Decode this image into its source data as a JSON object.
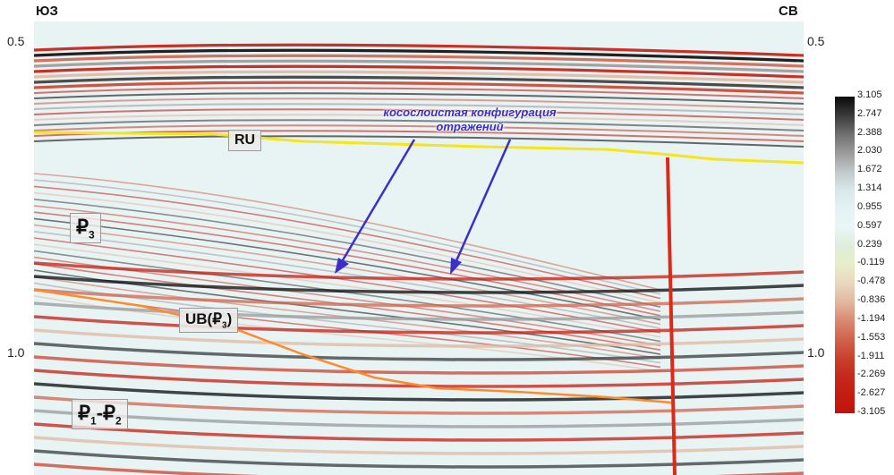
{
  "directions": {
    "left": "ЮЗ",
    "right": "СВ"
  },
  "time_axis": {
    "ticks": [
      "0.5",
      "1.0"
    ]
  },
  "horizons": {
    "ru": "RU",
    "p3": {
      "symbol": "₽",
      "sub": "3"
    },
    "ub": {
      "text": "UB(",
      "symbol": "₽",
      "sub": "3",
      "close": ")"
    },
    "p12": {
      "symbol": "₽",
      "sub1": "1",
      "dash": "-",
      "symbol2": "₽",
      "sub2": "2"
    }
  },
  "annotation": {
    "line1": "косослоистая конфигурация",
    "line2": "отражений"
  },
  "colorbar": {
    "ticks": [
      "3.105",
      "2.747",
      "2.388",
      "2.030",
      "1.672",
      "1.314",
      "0.955",
      "0.597",
      "0.239",
      "-0.119",
      "-0.478",
      "-0.836",
      "-1.194",
      "-1.553",
      "-1.911",
      "-2.269",
      "-2.627",
      "-3.105"
    ],
    "colors": [
      "#0a0a0a",
      "#3a3a3a",
      "#6e6e6e",
      "#9a9a9a",
      "#bfc7c9",
      "#d8e8ea",
      "#e3f2f4",
      "#e9f6f7",
      "#dfeedc",
      "#e7efc8",
      "#e8d7bf",
      "#e2b8a0",
      "#d98b72",
      "#d0644e",
      "#c9422f",
      "#c52a1c",
      "#c41c12",
      "#c0140c"
    ]
  },
  "colors": {
    "horizon_ru": "#f5e51a",
    "horizon_ub": "#ff8a2a",
    "arrow": "#3b2fc9",
    "fault": "#d92a1a"
  }
}
